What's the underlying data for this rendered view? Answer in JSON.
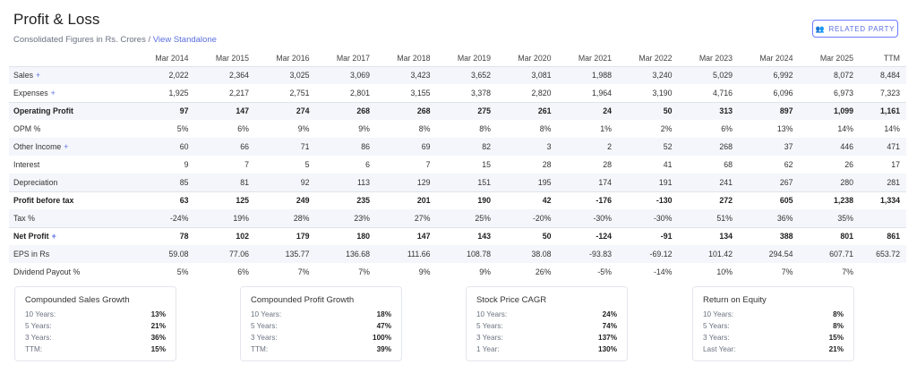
{
  "header": {
    "title": "Profit & Loss",
    "subtitle_prefix": "Consolidated Figures in Rs. Crores / ",
    "subtitle_link": "View Standalone",
    "related_party_label": "RELATED PARTY",
    "related_party_icon": "users-icon"
  },
  "table": {
    "columns": [
      "Mar 2014",
      "Mar 2015",
      "Mar 2016",
      "Mar 2017",
      "Mar 2018",
      "Mar 2019",
      "Mar 2020",
      "Mar 2021",
      "Mar 2022",
      "Mar 2023",
      "Mar 2024",
      "Mar 2025",
      "TTM"
    ],
    "rows": [
      {
        "label": "Sales",
        "expand": "+",
        "bold": false,
        "stripe": true,
        "sep": true,
        "values": [
          "2,022",
          "2,364",
          "3,025",
          "3,069",
          "3,423",
          "3,652",
          "3,081",
          "1,988",
          "3,240",
          "5,029",
          "6,992",
          "8,072",
          "8,484"
        ]
      },
      {
        "label": "Expenses",
        "expand": "+",
        "bold": false,
        "stripe": false,
        "sep": false,
        "values": [
          "1,925",
          "2,217",
          "2,751",
          "2,801",
          "3,155",
          "3,378",
          "2,820",
          "1,964",
          "3,190",
          "4,716",
          "6,096",
          "6,973",
          "7,323"
        ]
      },
      {
        "label": "Operating Profit",
        "expand": "",
        "bold": true,
        "stripe": true,
        "sep": true,
        "values": [
          "97",
          "147",
          "274",
          "268",
          "268",
          "275",
          "261",
          "24",
          "50",
          "313",
          "897",
          "1,099",
          "1,161"
        ]
      },
      {
        "label": "OPM %",
        "expand": "",
        "bold": false,
        "stripe": false,
        "sep": false,
        "values": [
          "5%",
          "6%",
          "9%",
          "9%",
          "8%",
          "8%",
          "8%",
          "1%",
          "2%",
          "6%",
          "13%",
          "14%",
          "14%"
        ]
      },
      {
        "label": "Other Income",
        "expand": "+",
        "bold": false,
        "stripe": true,
        "sep": false,
        "values": [
          "60",
          "66",
          "71",
          "86",
          "69",
          "82",
          "3",
          "2",
          "52",
          "268",
          "37",
          "446",
          "471"
        ]
      },
      {
        "label": "Interest",
        "expand": "",
        "bold": false,
        "stripe": false,
        "sep": false,
        "values": [
          "9",
          "7",
          "5",
          "6",
          "7",
          "15",
          "28",
          "28",
          "41",
          "68",
          "62",
          "26",
          "17"
        ]
      },
      {
        "label": "Depreciation",
        "expand": "",
        "bold": false,
        "stripe": true,
        "sep": false,
        "values": [
          "85",
          "81",
          "92",
          "113",
          "129",
          "151",
          "195",
          "174",
          "191",
          "241",
          "267",
          "280",
          "281"
        ]
      },
      {
        "label": "Profit before tax",
        "expand": "",
        "bold": true,
        "stripe": false,
        "sep": true,
        "values": [
          "63",
          "125",
          "249",
          "235",
          "201",
          "190",
          "42",
          "-176",
          "-130",
          "272",
          "605",
          "1,238",
          "1,334"
        ]
      },
      {
        "label": "Tax %",
        "expand": "",
        "bold": false,
        "stripe": true,
        "sep": false,
        "values": [
          "-24%",
          "19%",
          "28%",
          "23%",
          "27%",
          "25%",
          "-20%",
          "-30%",
          "-30%",
          "51%",
          "36%",
          "35%",
          ""
        ]
      },
      {
        "label": "Net Profit",
        "expand": "+",
        "bold": true,
        "stripe": false,
        "sep": true,
        "values": [
          "78",
          "102",
          "179",
          "180",
          "147",
          "143",
          "50",
          "-124",
          "-91",
          "134",
          "388",
          "801",
          "861"
        ]
      },
      {
        "label": "EPS in Rs",
        "expand": "",
        "bold": false,
        "stripe": true,
        "sep": false,
        "values": [
          "59.08",
          "77.06",
          "135.77",
          "136.68",
          "111.66",
          "108.78",
          "38.08",
          "-93.83",
          "-69.12",
          "101.42",
          "294.54",
          "607.71",
          "653.72"
        ]
      },
      {
        "label": "Dividend Payout %",
        "expand": "",
        "bold": false,
        "stripe": false,
        "sep": false,
        "values": [
          "5%",
          "6%",
          "7%",
          "7%",
          "9%",
          "9%",
          "26%",
          "-5%",
          "-14%",
          "10%",
          "7%",
          "7%",
          ""
        ]
      }
    ]
  },
  "growth": [
    {
      "title": "Compounded Sales Growth",
      "rows": [
        [
          "10 Years:",
          "13%"
        ],
        [
          "5 Years:",
          "21%"
        ],
        [
          "3 Years:",
          "36%"
        ],
        [
          "TTM:",
          "15%"
        ]
      ]
    },
    {
      "title": "Compounded Profit Growth",
      "rows": [
        [
          "10 Years:",
          "18%"
        ],
        [
          "5 Years:",
          "47%"
        ],
        [
          "3 Years:",
          "100%"
        ],
        [
          "TTM:",
          "39%"
        ]
      ]
    },
    {
      "title": "Stock Price CAGR",
      "rows": [
        [
          "10 Years:",
          "24%"
        ],
        [
          "5 Years:",
          "74%"
        ],
        [
          "3 Years:",
          "137%"
        ],
        [
          "1 Year:",
          "130%"
        ]
      ]
    },
    {
      "title": "Return on Equity",
      "rows": [
        [
          "10 Years:",
          "8%"
        ],
        [
          "5 Years:",
          "8%"
        ],
        [
          "3 Years:",
          "15%"
        ],
        [
          "Last Year:",
          "21%"
        ]
      ]
    }
  ]
}
